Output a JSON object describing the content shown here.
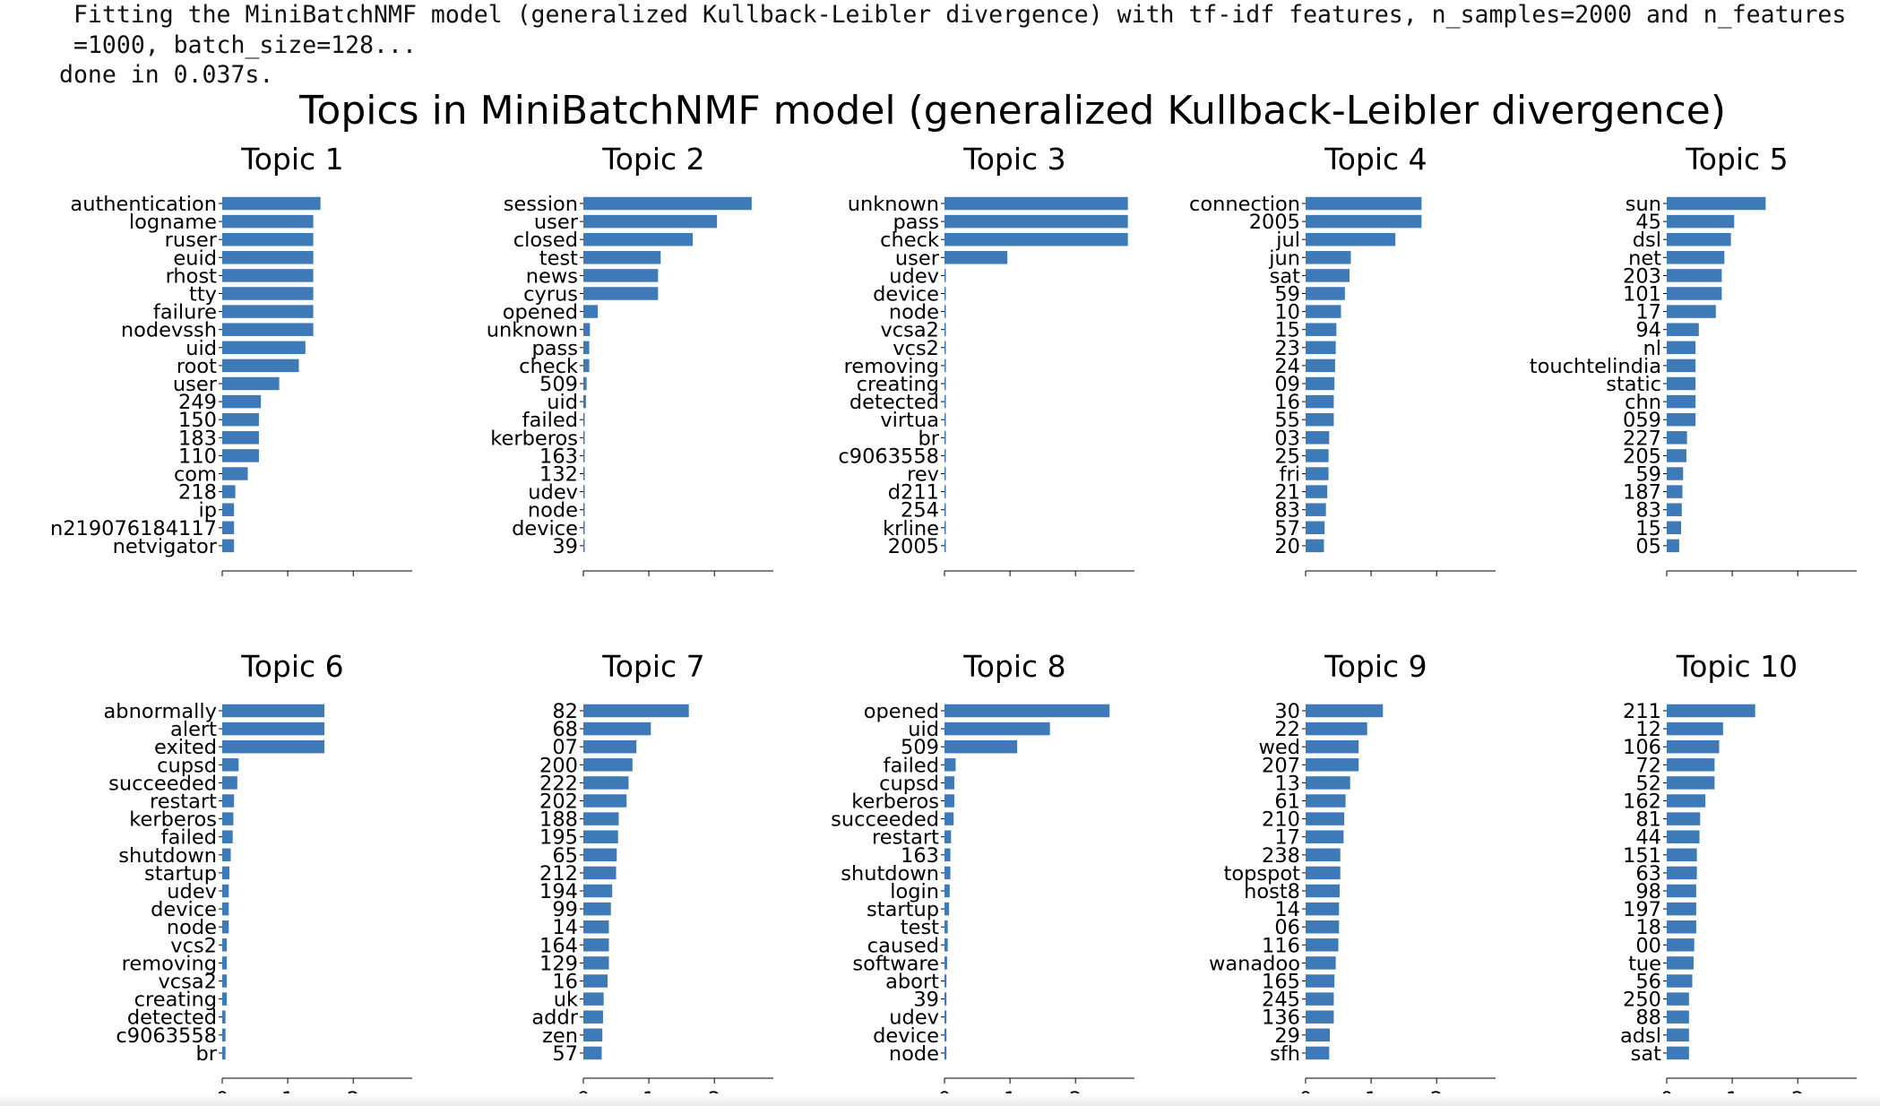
{
  "log": {
    "line1": "Fitting the MiniBatchNMF model (generalized Kullback-Leibler divergence) with tf-idf features, n_samples=2000 and n_features=1000, batch_size=128...",
    "line2": "done in 0.037s."
  },
  "chart_data": {
    "type": "bar",
    "orientation": "horizontal",
    "suptitle": "Topics in MiniBatchNMF model (generalized Kullback-Leibler divergence)",
    "bar_color": "#3f7ab8",
    "xlim": [
      0,
      2.9
    ],
    "xticks": [
      "0",
      "1",
      "2"
    ],
    "xtick_values": [
      0,
      1,
      2
    ],
    "subplots": [
      {
        "title": "Topic 1",
        "categories": [
          "authentication",
          "logname",
          "ruser",
          "euid",
          "rhost",
          "tty",
          "failure",
          "nodevssh",
          "uid",
          "root",
          "user",
          "249",
          "150",
          "183",
          "110",
          "com",
          "218",
          "ip",
          "n219076184117",
          "netvigator"
        ],
        "values": [
          1.5,
          1.39,
          1.39,
          1.39,
          1.39,
          1.39,
          1.39,
          1.39,
          1.27,
          1.17,
          0.87,
          0.59,
          0.56,
          0.56,
          0.56,
          0.39,
          0.2,
          0.18,
          0.18,
          0.18
        ]
      },
      {
        "title": "Topic 2",
        "categories": [
          "session",
          "user",
          "closed",
          "test",
          "news",
          "cyrus",
          "opened",
          "unknown",
          "pass",
          "check",
          "509",
          "uid",
          "failed",
          "kerberos",
          "163",
          "132",
          "udev",
          "node",
          "device",
          "39"
        ],
        "values": [
          2.57,
          2.04,
          1.67,
          1.18,
          1.14,
          1.14,
          0.22,
          0.1,
          0.09,
          0.09,
          0.05,
          0.04,
          0.02,
          0.01,
          0.01,
          0.01,
          0.01,
          0.01,
          0.01,
          0.01
        ]
      },
      {
        "title": "Topic 3",
        "categories": [
          "unknown",
          "pass",
          "check",
          "user",
          "udev",
          "device",
          "node",
          "vcsa2",
          "vcs2",
          "removing",
          "creating",
          "detected",
          "virtua",
          "br",
          "c9063558",
          "rev",
          "d211",
          "254",
          "krline",
          "2005"
        ],
        "values": [
          2.8,
          2.8,
          2.8,
          0.96,
          0.02,
          0.02,
          0.02,
          0.02,
          0.02,
          0.02,
          0.02,
          0.02,
          0.02,
          0.02,
          0.02,
          0.02,
          0.02,
          0.02,
          0.02,
          0.02
        ]
      },
      {
        "title": "Topic 4",
        "categories": [
          "connection",
          "2005",
          "jul",
          "jun",
          "sat",
          "59",
          "10",
          "15",
          "23",
          "24",
          "09",
          "16",
          "55",
          "03",
          "25",
          "fri",
          "21",
          "83",
          "57",
          "20"
        ],
        "values": [
          1.77,
          1.77,
          1.37,
          0.69,
          0.67,
          0.6,
          0.54,
          0.47,
          0.46,
          0.45,
          0.44,
          0.43,
          0.43,
          0.36,
          0.35,
          0.35,
          0.33,
          0.31,
          0.29,
          0.28
        ]
      },
      {
        "title": "Topic 5",
        "categories": [
          "sun",
          "45",
          "dsl",
          "net",
          "203",
          "101",
          "17",
          "94",
          "nl",
          "touchtelindia",
          "static",
          "chn",
          "059",
          "227",
          "205",
          "59",
          "187",
          "83",
          "15",
          "05"
        ],
        "values": [
          1.51,
          1.03,
          0.98,
          0.88,
          0.84,
          0.84,
          0.75,
          0.49,
          0.44,
          0.44,
          0.44,
          0.44,
          0.44,
          0.31,
          0.3,
          0.25,
          0.24,
          0.23,
          0.22,
          0.19
        ]
      },
      {
        "title": "Topic 6",
        "categories": [
          "abnormally",
          "alert",
          "exited",
          "cupsd",
          "succeeded",
          "restart",
          "kerberos",
          "failed",
          "shutdown",
          "startup",
          "udev",
          "device",
          "node",
          "vcs2",
          "removing",
          "vcsa2",
          "creating",
          "detected",
          "c9063558",
          "br"
        ],
        "values": [
          1.56,
          1.56,
          1.56,
          0.25,
          0.23,
          0.18,
          0.17,
          0.16,
          0.13,
          0.11,
          0.1,
          0.1,
          0.1,
          0.07,
          0.07,
          0.07,
          0.07,
          0.05,
          0.05,
          0.05
        ]
      },
      {
        "title": "Topic 7",
        "categories": [
          "82",
          "68",
          "07",
          "200",
          "222",
          "202",
          "188",
          "195",
          "65",
          "212",
          "194",
          "99",
          "14",
          "164",
          "129",
          "16",
          "uk",
          "addr",
          "zen",
          "57"
        ],
        "values": [
          1.61,
          1.03,
          0.81,
          0.75,
          0.69,
          0.66,
          0.54,
          0.53,
          0.51,
          0.5,
          0.44,
          0.42,
          0.39,
          0.39,
          0.39,
          0.37,
          0.31,
          0.3,
          0.29,
          0.28
        ]
      },
      {
        "title": "Topic 8",
        "categories": [
          "opened",
          "uid",
          "509",
          "failed",
          "cupsd",
          "kerberos",
          "succeeded",
          "restart",
          "163",
          "shutdown",
          "login",
          "startup",
          "test",
          "caused",
          "software",
          "abort",
          "39",
          "udev",
          "device",
          "node"
        ],
        "values": [
          2.52,
          1.61,
          1.11,
          0.17,
          0.15,
          0.15,
          0.14,
          0.1,
          0.09,
          0.09,
          0.08,
          0.07,
          0.05,
          0.05,
          0.04,
          0.03,
          0.03,
          0.03,
          0.03,
          0.03
        ]
      },
      {
        "title": "Topic 9",
        "categories": [
          "30",
          "22",
          "wed",
          "207",
          "13",
          "61",
          "210",
          "17",
          "238",
          "topspot",
          "host8",
          "14",
          "06",
          "116",
          "wanadoo",
          "165",
          "245",
          "136",
          "29",
          "sfh"
        ],
        "values": [
          1.18,
          0.94,
          0.81,
          0.81,
          0.68,
          0.61,
          0.59,
          0.58,
          0.53,
          0.53,
          0.52,
          0.51,
          0.51,
          0.5,
          0.46,
          0.44,
          0.43,
          0.43,
          0.37,
          0.36
        ]
      },
      {
        "title": "Topic 10",
        "categories": [
          "211",
          "12",
          "106",
          "72",
          "52",
          "162",
          "81",
          "44",
          "151",
          "63",
          "98",
          "197",
          "18",
          "00",
          "tue",
          "56",
          "250",
          "88",
          "adsl",
          "sat"
        ],
        "values": [
          1.35,
          0.86,
          0.8,
          0.73,
          0.73,
          0.59,
          0.51,
          0.5,
          0.46,
          0.46,
          0.45,
          0.45,
          0.45,
          0.42,
          0.41,
          0.39,
          0.34,
          0.34,
          0.34,
          0.34
        ]
      }
    ]
  }
}
